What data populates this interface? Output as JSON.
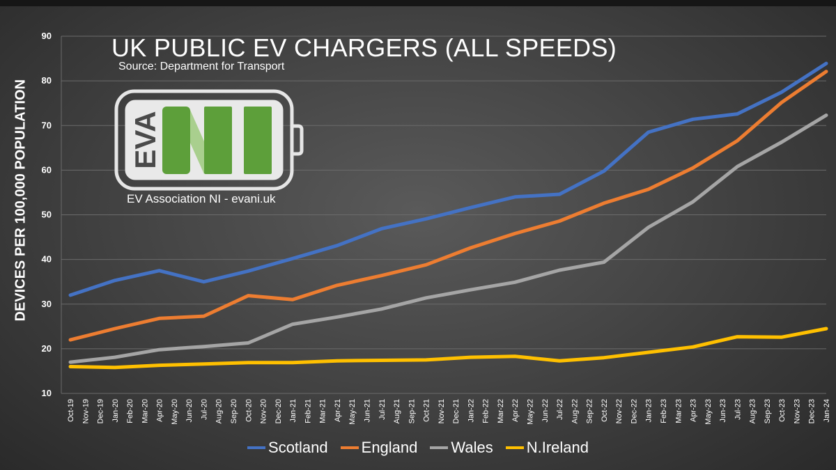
{
  "header": {
    "title": "UK PUBLIC EV CHARGERS (ALL SPEEDS)",
    "subtitle": "Source: Department for Transport"
  },
  "logo": {
    "mark_text": "EVA",
    "caption": "EV Association NI - evani.uk",
    "accent_color": "#5d9f3a"
  },
  "chart_data": {
    "type": "line",
    "title": "UK PUBLIC EV CHARGERS (ALL SPEEDS)",
    "ylabel": "DEVICES PER 100,000 POPULATION",
    "xlabel": "",
    "ylim": [
      10,
      90
    ],
    "yticks": [
      10,
      20,
      30,
      40,
      50,
      60,
      70,
      80,
      90
    ],
    "grid": true,
    "legend_position": "bottom",
    "categories": [
      "Oct-19",
      "Nov-19",
      "Dec-19",
      "Jan-20",
      "Feb-20",
      "Mar-20",
      "Apr-20",
      "May-20",
      "Jun-20",
      "Jul-20",
      "Aug-20",
      "Sep-20",
      "Oct-20",
      "Nov-20",
      "Dec-20",
      "Jan-21",
      "Feb-21",
      "Mar-21",
      "Apr-21",
      "May-21",
      "Jun-21",
      "Jul-21",
      "Aug-21",
      "Sep-21",
      "Oct-21",
      "Nov-21",
      "Dec-21",
      "Jan-22",
      "Feb-22",
      "Mar-22",
      "Apr-22",
      "May-22",
      "Jun-22",
      "Jul-22",
      "Aug-22",
      "Sep-22",
      "Oct-22",
      "Nov-22",
      "Dec-22",
      "Jan-23",
      "Feb-23",
      "Mar-23",
      "Apr-23",
      "May-23",
      "Jun-23",
      "Jul-23",
      "Aug-23",
      "Sep-23",
      "Oct-23",
      "Nov-23",
      "Dec-23",
      "Jan-24"
    ],
    "series": [
      {
        "name": "Scotland",
        "color": "#4472c4",
        "x": [
          "Oct-19",
          "Jan-20",
          "Apr-20",
          "Jul-20",
          "Oct-20",
          "Jan-21",
          "Apr-21",
          "Jul-21",
          "Oct-21",
          "Jan-22",
          "Apr-22",
          "Jul-22",
          "Oct-22",
          "Jan-23",
          "Apr-23",
          "Jul-23",
          "Oct-23",
          "Jan-24"
        ],
        "values": [
          32.0,
          35.3,
          37.5,
          35.0,
          37.4,
          40.2,
          43.1,
          46.9,
          49.1,
          51.6,
          54.0,
          54.6,
          59.8,
          68.5,
          71.4,
          72.6,
          77.5,
          83.9
        ]
      },
      {
        "name": "England",
        "color": "#ed7d31",
        "x": [
          "Oct-19",
          "Jan-20",
          "Apr-20",
          "Jul-20",
          "Oct-20",
          "Jan-21",
          "Apr-21",
          "Jul-21",
          "Oct-21",
          "Jan-22",
          "Apr-22",
          "Jul-22",
          "Oct-22",
          "Jan-23",
          "Apr-23",
          "Jul-23",
          "Oct-23",
          "Jan-24"
        ],
        "values": [
          22.0,
          24.5,
          26.8,
          27.3,
          31.9,
          31.0,
          34.2,
          36.4,
          38.8,
          42.6,
          45.8,
          48.6,
          52.6,
          55.7,
          60.5,
          66.6,
          75.2,
          82.1
        ]
      },
      {
        "name": "Wales",
        "color": "#a5a5a5",
        "x": [
          "Oct-19",
          "Jan-20",
          "Apr-20",
          "Jul-20",
          "Oct-20",
          "Jan-21",
          "Apr-21",
          "Jul-21",
          "Oct-21",
          "Jan-22",
          "Apr-22",
          "Jul-22",
          "Oct-22",
          "Jan-23",
          "Apr-23",
          "Jul-23",
          "Oct-23",
          "Jan-24"
        ],
        "values": [
          17.0,
          18.1,
          19.8,
          20.5,
          21.3,
          25.5,
          27.1,
          28.9,
          31.4,
          33.2,
          34.9,
          37.6,
          39.4,
          47.2,
          52.9,
          60.8,
          66.3,
          72.3
        ]
      },
      {
        "name": "N.Ireland",
        "color": "#ffc000",
        "x": [
          "Oct-19",
          "Jan-20",
          "Apr-20",
          "Jul-20",
          "Oct-20",
          "Jan-21",
          "Apr-21",
          "Jul-21",
          "Oct-21",
          "Jan-22",
          "Apr-22",
          "Jul-22",
          "Oct-22",
          "Jan-23",
          "Apr-23",
          "Jul-23",
          "Oct-23",
          "Jan-24"
        ],
        "values": [
          16.0,
          15.8,
          16.3,
          16.6,
          16.9,
          16.9,
          17.3,
          17.4,
          17.5,
          18.1,
          18.3,
          17.3,
          18.0,
          19.2,
          20.4,
          22.7,
          22.6,
          24.5
        ]
      }
    ]
  }
}
